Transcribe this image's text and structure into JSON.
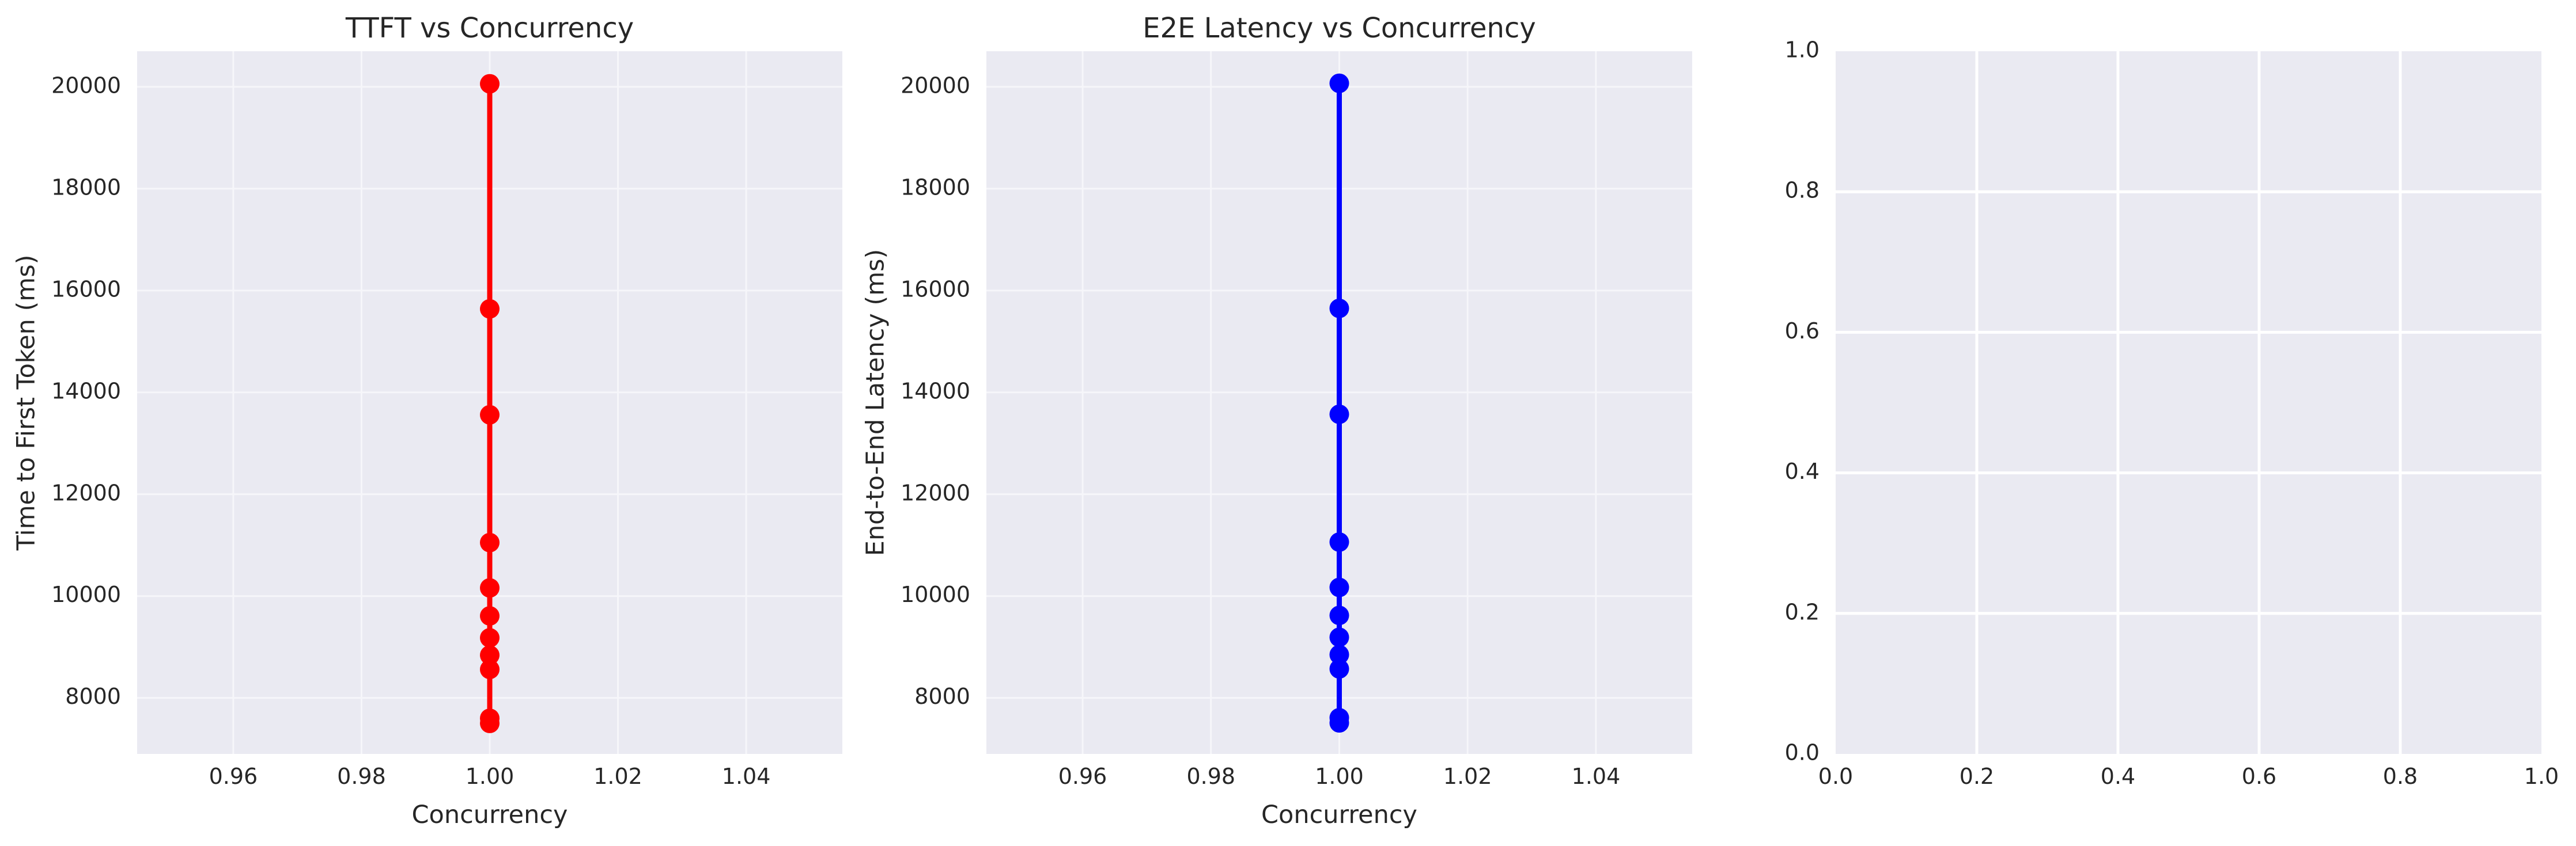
{
  "colors": {
    "background": "#ffffff",
    "plot_background": "#eaeaf2",
    "ttft_series": "#ff0000",
    "e2e_series": "#0000ff",
    "text": "#262626"
  },
  "chart_data": [
    {
      "type": "line",
      "title": "TTFT vs Concurrency",
      "xlabel": "Concurrency",
      "ylabel": "Time to First Token (ms)",
      "xlim": [
        0.945,
        1.055
      ],
      "ylim": [
        6900,
        20700
      ],
      "xticks": [
        0.96,
        0.98,
        1.0,
        1.02,
        1.04
      ],
      "xtick_labels": [
        "0.96",
        "0.98",
        "1.00",
        "1.02",
        "1.04"
      ],
      "yticks": [
        8000,
        10000,
        12000,
        14000,
        16000,
        18000,
        20000
      ],
      "ytick_labels": [
        "8000",
        "10000",
        "12000",
        "14000",
        "16000",
        "18000",
        "20000"
      ],
      "grid": true,
      "marker": "circle",
      "color": "#ff0000",
      "series": [
        {
          "x": [
            1.0,
            1.0,
            1.0,
            1.0,
            1.0,
            1.0,
            1.0,
            1.0,
            1.0,
            1.0,
            1.0
          ],
          "y": [
            7500,
            7600,
            8560,
            8840,
            9180,
            9610,
            10160,
            11050,
            13560,
            15640,
            20060
          ]
        }
      ]
    },
    {
      "type": "line",
      "title": "E2E Latency vs Concurrency",
      "xlabel": "Concurrency",
      "ylabel": "End-to-End Latency (ms)",
      "xlim": [
        0.945,
        1.055
      ],
      "ylim": [
        6900,
        20700
      ],
      "xticks": [
        0.96,
        0.98,
        1.0,
        1.02,
        1.04
      ],
      "xtick_labels": [
        "0.96",
        "0.98",
        "1.00",
        "1.02",
        "1.04"
      ],
      "yticks": [
        8000,
        10000,
        12000,
        14000,
        16000,
        18000,
        20000
      ],
      "ytick_labels": [
        "8000",
        "10000",
        "12000",
        "14000",
        "16000",
        "18000",
        "20000"
      ],
      "grid": true,
      "marker": "circle",
      "color": "#0000ff",
      "series": [
        {
          "x": [
            1.0,
            1.0,
            1.0,
            1.0,
            1.0,
            1.0,
            1.0,
            1.0,
            1.0,
            1.0,
            1.0
          ],
          "y": [
            7510,
            7610,
            8570,
            8850,
            9190,
            9620,
            10170,
            11060,
            13570,
            15650,
            20070
          ]
        }
      ]
    },
    {
      "type": "line",
      "title": "",
      "xlabel": "",
      "ylabel": "",
      "xlim": [
        0,
        1
      ],
      "ylim": [
        0,
        1
      ],
      "xticks": [
        0.0,
        0.2,
        0.4,
        0.6,
        0.8,
        1.0
      ],
      "xtick_labels": [
        "0.0",
        "0.2",
        "0.4",
        "0.6",
        "0.8",
        "1.0"
      ],
      "yticks": [
        0.0,
        0.2,
        0.4,
        0.6,
        0.8,
        1.0
      ],
      "ytick_labels": [
        "0.0",
        "0.2",
        "0.4",
        "0.6",
        "0.8",
        "1.0"
      ],
      "grid": true,
      "series": []
    }
  ]
}
